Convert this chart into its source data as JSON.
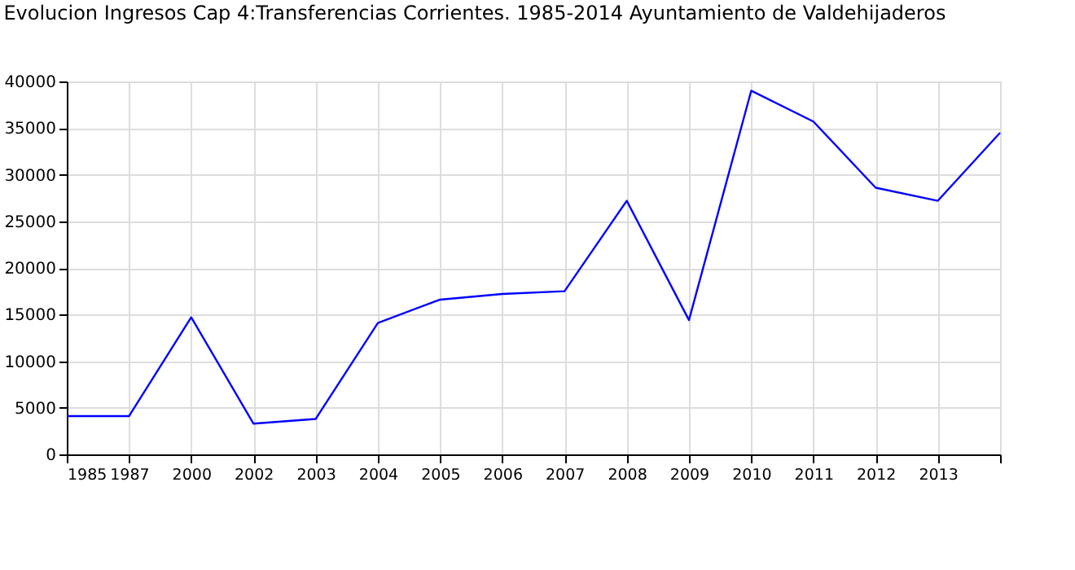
{
  "chart_data": {
    "type": "line",
    "title": "Evolucion Ingresos Cap 4:Transferencias Corrientes. 1985-2014 Ayuntamiento de Valdehijaderos",
    "categories": [
      "1985",
      "1987",
      "2000",
      "2002",
      "2003",
      "2004",
      "2005",
      "2006",
      "2007",
      "2008",
      "2009",
      "2010",
      "2011",
      "2012",
      "2013",
      null
    ],
    "series": [
      {
        "color": "#0000ff",
        "values": [
          4100,
          4100,
          14700,
          3300,
          3800,
          14100,
          16600,
          17200,
          17500,
          27200,
          14400,
          39000,
          35700,
          28600,
          27200,
          34500
        ]
      }
    ],
    "ylim": [
      0,
      40000
    ],
    "yticks": [
      0,
      5000,
      10000,
      15000,
      20000,
      25000,
      30000,
      35000,
      40000
    ],
    "grid": true,
    "marker": "none",
    "line_style": "solid"
  }
}
